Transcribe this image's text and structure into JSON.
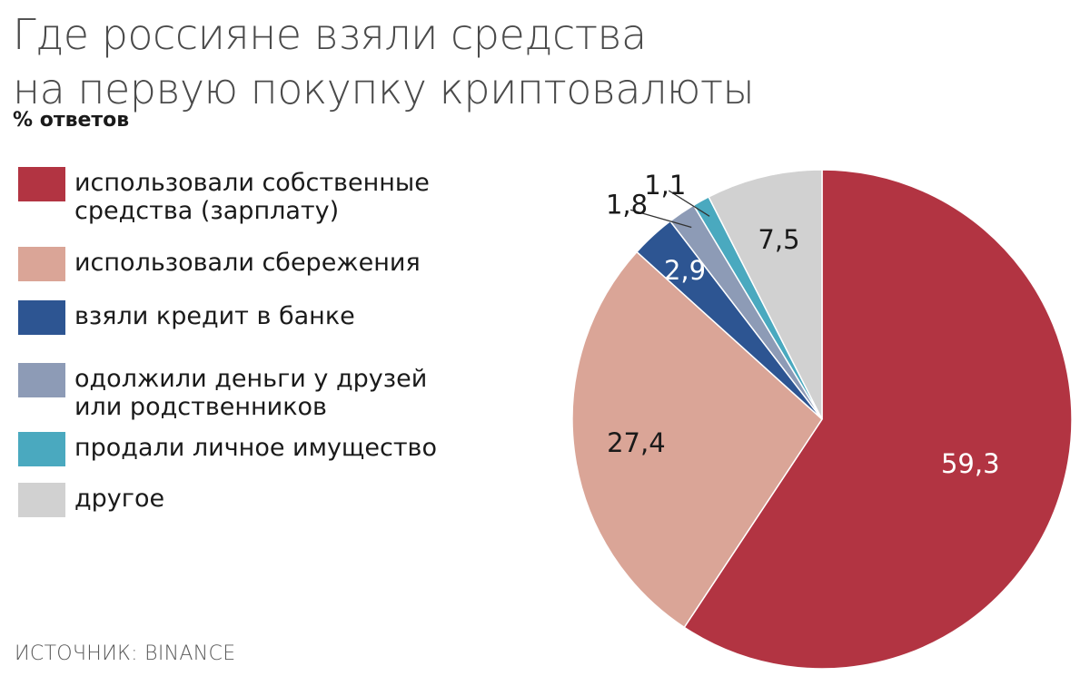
{
  "chart_data": {
    "type": "pie",
    "title": "Где россияне взяли средства\nна первую покупку криптовалюты",
    "subtitle": "% ответов",
    "source": "ИСТОЧНИК: BINANCE",
    "slices": [
      {
        "label": "использовали собственные\nсредства (зарплату)",
        "value": 59.3,
        "display": "59,3",
        "color": "#b23442",
        "label_color": "#ffffff"
      },
      {
        "label": "использовали сбережения",
        "value": 27.4,
        "display": "27,4",
        "color": "#daa597",
        "label_color": "#1a1a1a"
      },
      {
        "label": "взяли кредит в банке",
        "value": 2.9,
        "display": "2,9",
        "color": "#2d5592",
        "label_color": "#ffffff"
      },
      {
        "label": "одолжили деньги у друзей\nили родственников",
        "value": 1.8,
        "display": "1,8",
        "color": "#8d9bb6",
        "label_color": "#1a1a1a"
      },
      {
        "label": "продали личное имущество",
        "value": 1.1,
        "display": "1,1",
        "color": "#4aa9bf",
        "label_color": "#1a1a1a"
      },
      {
        "label": "другое",
        "value": 7.5,
        "display": "7,5",
        "color": "#d1d1d1",
        "label_color": "#1a1a1a"
      }
    ]
  }
}
